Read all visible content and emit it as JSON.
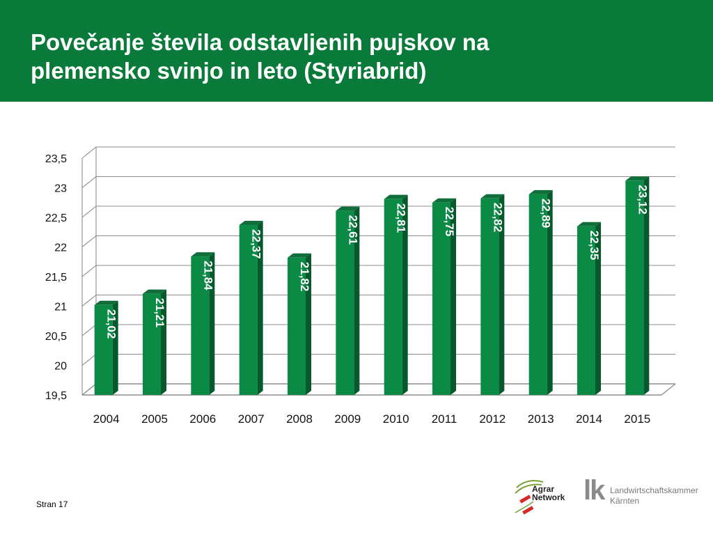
{
  "header": {
    "title_line1": "Povečanje števila odstavljenih pujskov na",
    "title_line2": "plemensko svinjo in leto (Styriabrid)"
  },
  "colors": {
    "header_bg": "#0a7a3a",
    "bar_front": "#0b8a45",
    "bar_side": "#055a2c",
    "bar_top": "#0f6e3a",
    "label_text": "#ffffff",
    "grid": "#8c8c8c"
  },
  "chart_data": {
    "type": "bar",
    "title": "",
    "xlabel": "",
    "ylabel": "",
    "ylim": [
      19.5,
      23.5
    ],
    "yticks": [
      "19,5",
      "20",
      "20,5",
      "21",
      "21,5",
      "22",
      "22,5",
      "23",
      "23,5"
    ],
    "ytick_values": [
      19.5,
      20,
      20.5,
      21,
      21.5,
      22,
      22.5,
      23,
      23.5
    ],
    "categories": [
      "2004",
      "2005",
      "2006",
      "2007",
      "2008",
      "2009",
      "2010",
      "2011",
      "2012",
      "2013",
      "2014",
      "2015"
    ],
    "values": [
      21.02,
      21.21,
      21.84,
      22.37,
      21.82,
      22.61,
      22.81,
      22.75,
      22.82,
      22.89,
      22.35,
      23.12
    ],
    "value_labels": [
      "21,02",
      "21,21",
      "21,84",
      "22,37",
      "21,82",
      "22,61",
      "22,81",
      "22,75",
      "22,82",
      "22,89",
      "22,35",
      "23,12"
    ],
    "grid": true,
    "style": "3d"
  },
  "footer": {
    "page_label": "Stran 17",
    "logo_agrar_line1": "Agrar",
    "logo_agrar_line2": "Network",
    "logo_lk_mark": "lk",
    "logo_lk_line1": "Landwirtschaftskammer",
    "logo_lk_line2": "Kärnten"
  }
}
